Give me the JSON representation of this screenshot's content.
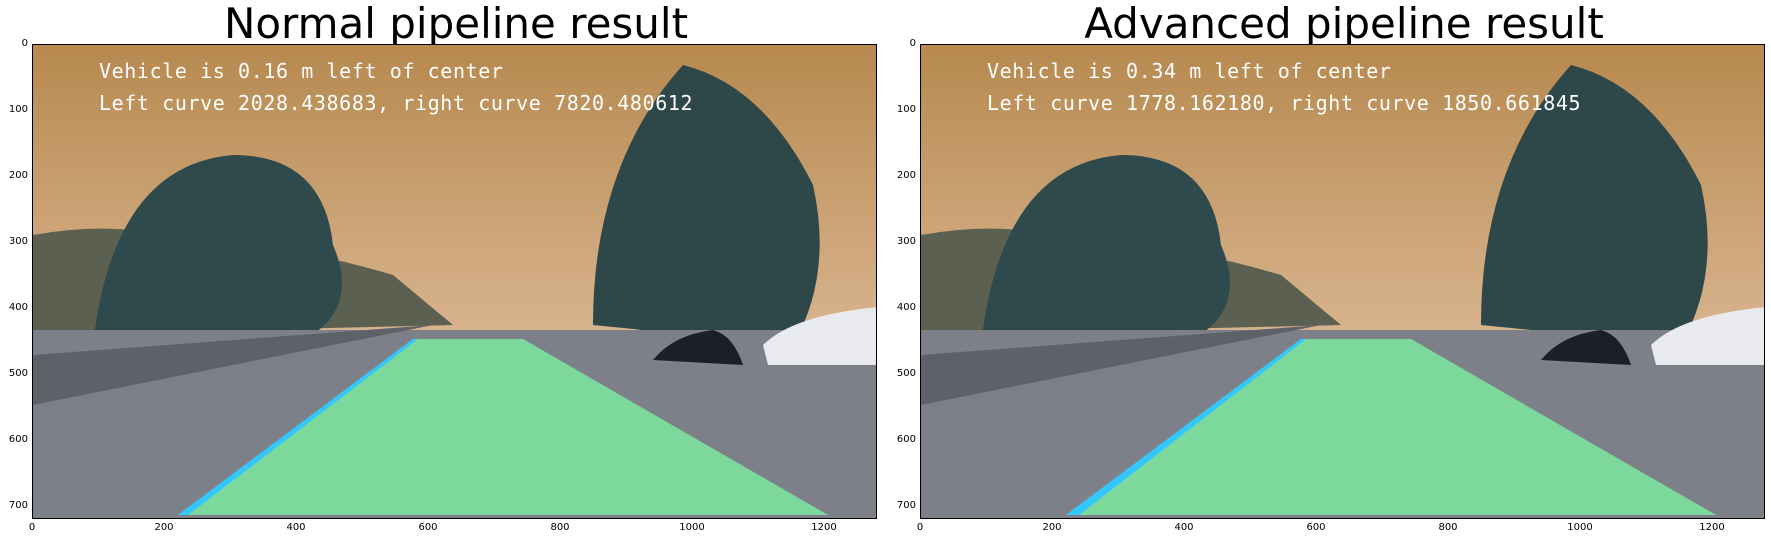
{
  "panels": [
    {
      "title": "Normal pipeline result",
      "line1": "Vehicle is 0.16 m left of center",
      "line2": "Left curve 2028.438683, right curve 7820.480612"
    },
    {
      "title": "Advanced pipeline result",
      "line1": "Vehicle is 0.34 m left of center",
      "line2": "Left curve 1778.162180, right curve 1850.661845"
    }
  ],
  "axes": {
    "xlim": [
      0,
      1280
    ],
    "ylim": [
      720,
      0
    ],
    "xticks": [
      "0",
      "200",
      "400",
      "600",
      "800",
      "1000",
      "1200"
    ],
    "yticks": [
      "0",
      "100",
      "200",
      "300",
      "400",
      "500",
      "600",
      "700"
    ]
  },
  "colors": {
    "sky": "#c49a68",
    "road": "#7d8088",
    "lane_fill": "#7de8a0",
    "lane_line": "#31c7ff",
    "trees": "#2f4a4c"
  }
}
